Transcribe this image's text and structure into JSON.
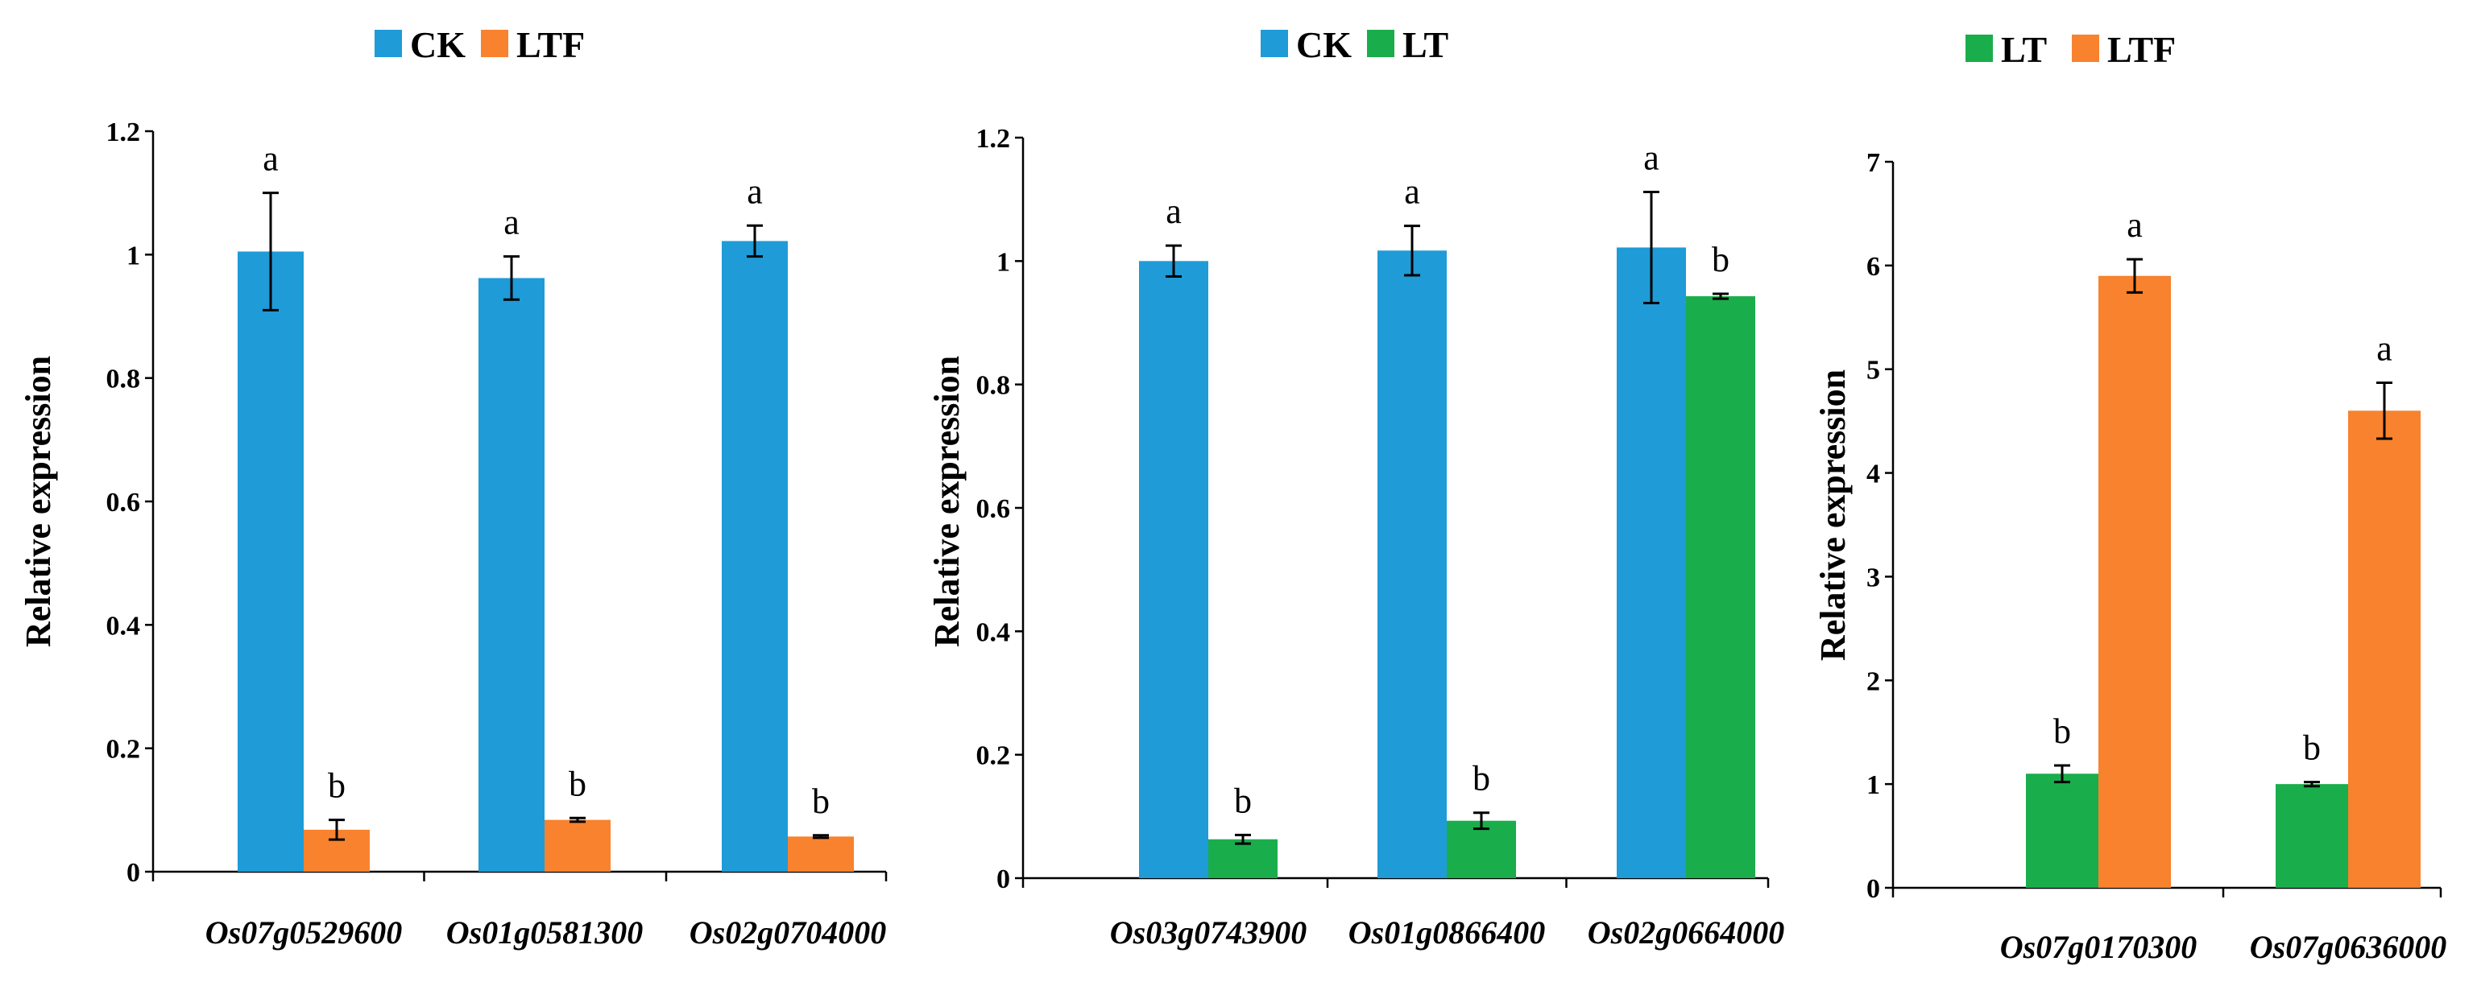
{
  "colors": {
    "CK": "#1f9bd7",
    "LTF": "#f8822e",
    "LT": "#1aad4b"
  },
  "chart_data": [
    {
      "type": "bar",
      "legend": [
        "CK",
        "LTF"
      ],
      "ylabel": "Relative expression",
      "ylim": [
        0,
        1.2
      ],
      "yticks": [
        "0",
        "0.2",
        "0.4",
        "0.6",
        "0.8",
        "1",
        "1.2"
      ],
      "categories": [
        "Os07g0529600",
        "Os01g0581300",
        "Os02g0704000"
      ],
      "series": [
        {
          "name": "CK",
          "values": [
            1.005,
            0.962,
            1.022
          ],
          "errors": [
            0.095,
            0.035,
            0.025
          ],
          "labels": [
            "a",
            "a",
            "a"
          ]
        },
        {
          "name": "LTF",
          "values": [
            0.068,
            0.084,
            0.057
          ],
          "errors": [
            0.016,
            0.003,
            0.002
          ],
          "labels": [
            "b",
            "b",
            "b"
          ]
        }
      ]
    },
    {
      "type": "bar",
      "legend": [
        "CK",
        "LT"
      ],
      "ylabel": "Relative expression",
      "ylim": [
        0,
        1.2
      ],
      "yticks": [
        "0",
        "0.2",
        "0.4",
        "0.6",
        "0.8",
        "1",
        "1.2"
      ],
      "categories": [
        "Os03g0743900",
        "Os01g0866400",
        "Os02g0664000"
      ],
      "series": [
        {
          "name": "CK",
          "values": [
            1.0,
            1.017,
            1.022
          ],
          "errors": [
            0.025,
            0.04,
            0.09
          ],
          "labels": [
            "a",
            "a",
            "a"
          ]
        },
        {
          "name": "LT",
          "values": [
            0.063,
            0.093,
            0.943
          ],
          "errors": [
            0.007,
            0.013,
            0.004
          ],
          "labels": [
            "b",
            "b",
            "b"
          ]
        }
      ]
    },
    {
      "type": "bar",
      "legend": [
        "LT",
        "LTF"
      ],
      "ylabel": "Relative expression",
      "ylim": [
        0,
        7
      ],
      "yticks": [
        "0",
        "1",
        "2",
        "3",
        "4",
        "5",
        "6",
        "7"
      ],
      "categories": [
        "Os07g0170300",
        "Os07g0636000"
      ],
      "series": [
        {
          "name": "LT",
          "values": [
            1.1,
            1.0
          ],
          "errors": [
            0.08,
            0.02
          ],
          "labels": [
            "b",
            "b"
          ]
        },
        {
          "name": "LTF",
          "values": [
            5.9,
            4.6
          ],
          "errors": [
            0.16,
            0.27
          ],
          "labels": [
            "a",
            "a"
          ]
        }
      ]
    }
  ]
}
